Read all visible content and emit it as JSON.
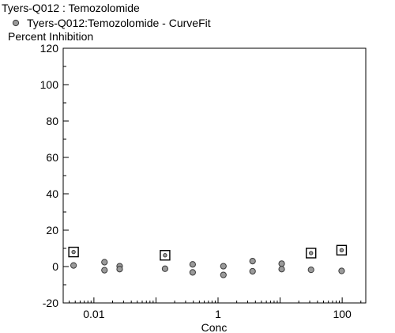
{
  "chart_data": {
    "type": "scatter",
    "title": "Tyers-Q012  :  Temozolomide",
    "legend": {
      "placement": "top-left",
      "label": "Tyers-Q012:Temozolomide - CurveFit",
      "marker": "circle"
    },
    "xlabel": "Conc",
    "ylabel": "Percent Inhibition",
    "x_scale": "log",
    "xlim": [
      0.0032,
      240
    ],
    "ylim": [
      -20,
      120
    ],
    "y_ticks": [
      "120",
      "100",
      "80",
      "60",
      "40",
      "20",
      "0",
      "-20"
    ],
    "x_ticks": [
      {
        "value": 0.01,
        "label": "0.01"
      },
      {
        "value": 1,
        "label": "1"
      },
      {
        "value": 100,
        "label": "100"
      }
    ],
    "grid": false,
    "colors": {
      "marker_fill": "#9a9a9a",
      "marker_stroke": "#3a3a3a",
      "axis": "#000000"
    },
    "series": [
      {
        "marker": "circle",
        "points": [
          {
            "x": 0.0047,
            "y": 0.6
          },
          {
            "x": 0.0148,
            "y": 2.4
          },
          {
            "x": 0.0148,
            "y": -2.0
          },
          {
            "x": 0.026,
            "y": 0.2
          },
          {
            "x": 0.026,
            "y": -1.4
          },
          {
            "x": 0.14,
            "y": -1.2
          },
          {
            "x": 0.39,
            "y": 1.2
          },
          {
            "x": 0.39,
            "y": -3.2
          },
          {
            "x": 1.22,
            "y": 0.2
          },
          {
            "x": 1.22,
            "y": -4.6
          },
          {
            "x": 3.6,
            "y": 3.0
          },
          {
            "x": 3.6,
            "y": -2.6
          },
          {
            "x": 10.6,
            "y": 1.6
          },
          {
            "x": 10.6,
            "y": -1.4
          },
          {
            "x": 31.5,
            "y": -1.8
          },
          {
            "x": 98,
            "y": -2.4
          }
        ]
      },
      {
        "marker": "boxed-circle",
        "points": [
          {
            "x": 0.0047,
            "y": 8.0
          },
          {
            "x": 0.14,
            "y": 6.2
          },
          {
            "x": 31.5,
            "y": 7.4
          },
          {
            "x": 98,
            "y": 9.0
          }
        ]
      }
    ]
  }
}
